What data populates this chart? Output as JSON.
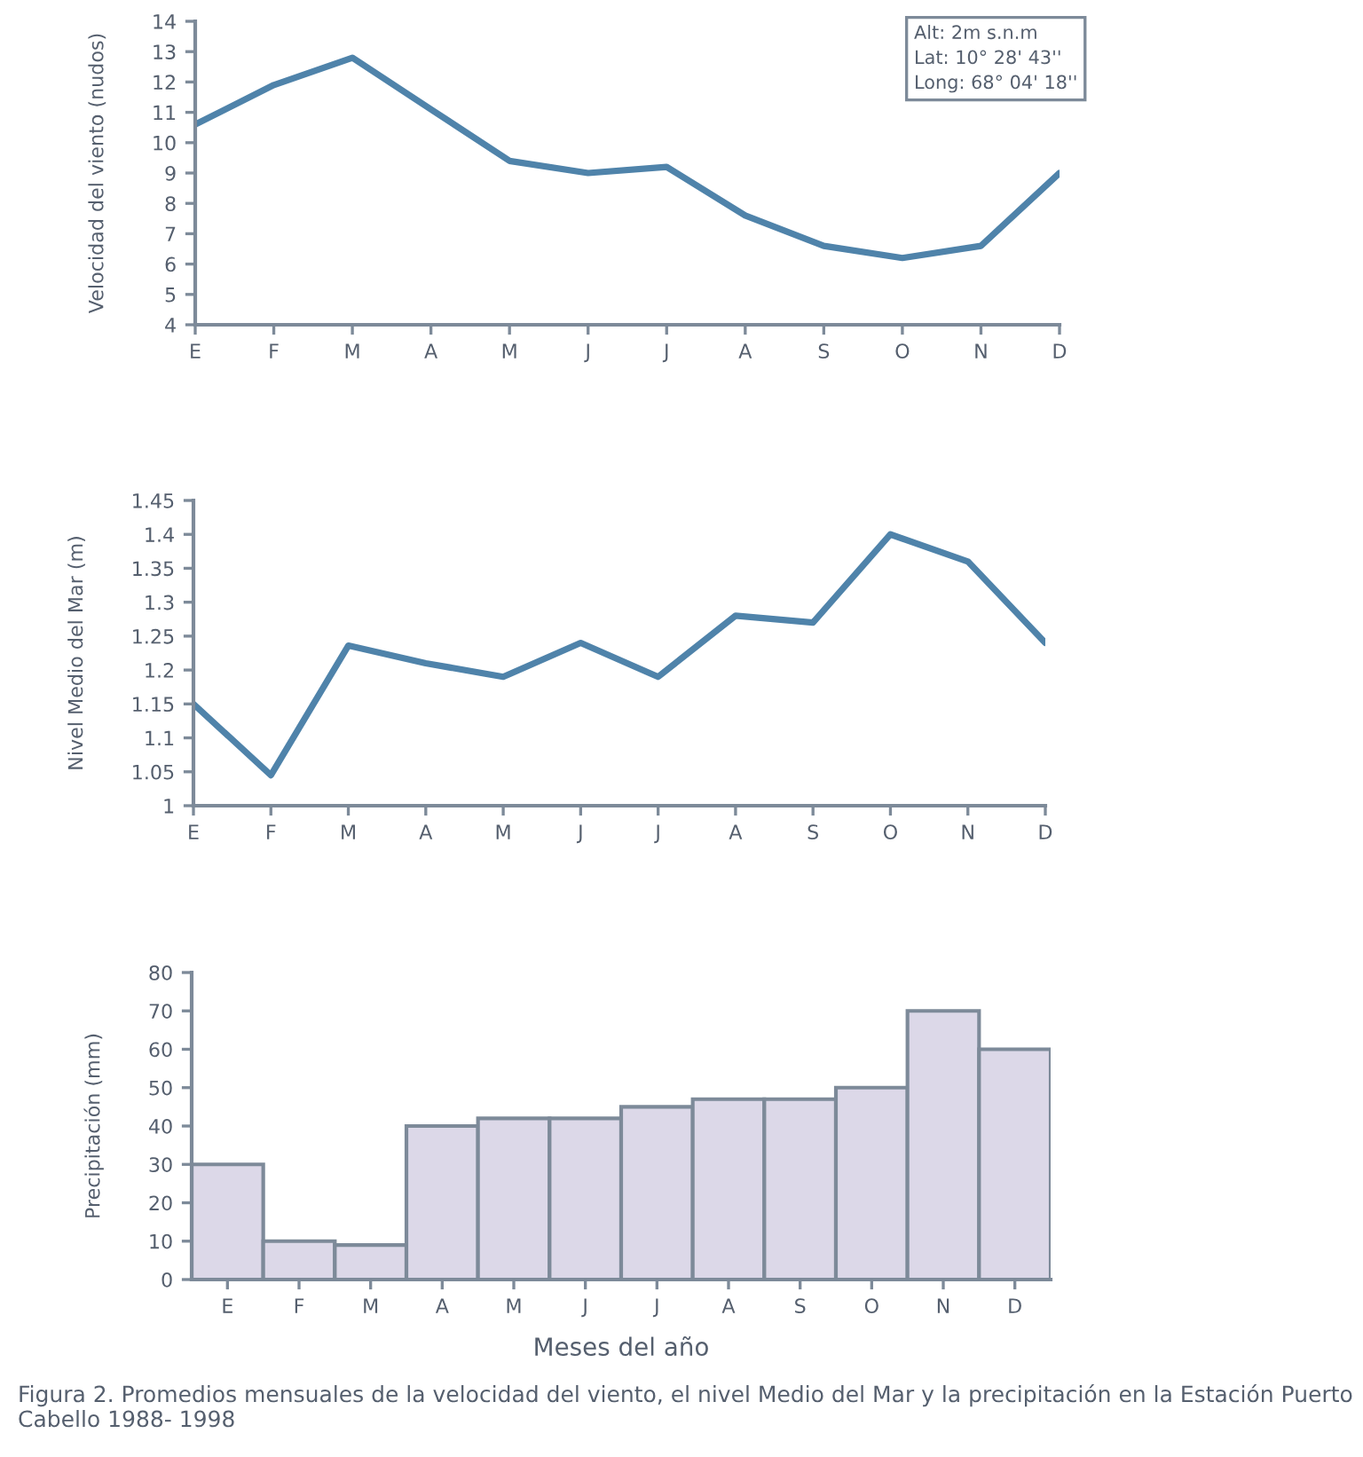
{
  "chart_data": [
    {
      "type": "line",
      "ylabel": "Velocidad del viento (nudos)",
      "categories": [
        "E",
        "F",
        "M",
        "A",
        "M",
        "J",
        "J",
        "A",
        "S",
        "O",
        "N",
        "D"
      ],
      "values": [
        10.6,
        11.9,
        12.8,
        11.1,
        9.4,
        9.0,
        9.2,
        7.6,
        6.6,
        6.2,
        6.6,
        9.0
      ],
      "color": "#4f83aa",
      "ylim": [
        4,
        14
      ],
      "yticks": [
        4,
        5,
        6,
        7,
        8,
        9,
        10,
        11,
        12,
        13,
        14
      ],
      "annotations": [
        "Alt: 2m s.n.m\nLat: 10° 28' 43''\nLong: 68° 04' 18''"
      ]
    },
    {
      "type": "line",
      "ylabel": "Nivel Medio del Mar (m)",
      "categories": [
        "E",
        "F",
        "M",
        "A",
        "M",
        "J",
        "J",
        "A",
        "S",
        "O",
        "N",
        "D"
      ],
      "values": [
        1.15,
        1.045,
        1.236,
        1.21,
        1.19,
        1.24,
        1.19,
        1.28,
        1.27,
        1.4,
        1.36,
        1.24
      ],
      "color": "#4f83aa",
      "ylim": [
        1,
        1.45
      ],
      "yticks": [
        1,
        1.05,
        1.1,
        1.15,
        1.2,
        1.25,
        1.3,
        1.35,
        1.4,
        1.45
      ]
    },
    {
      "type": "bar",
      "ylabel": "Precipitación (mm)",
      "xlabel": "Meses del año",
      "categories": [
        "E",
        "F",
        "M",
        "A",
        "M",
        "J",
        "J",
        "A",
        "S",
        "O",
        "N",
        "D"
      ],
      "values": [
        30,
        10,
        9,
        40,
        42,
        42,
        45,
        47,
        47,
        50,
        70,
        60
      ],
      "color": "#dcd8e8",
      "ylim": [
        0,
        80
      ],
      "yticks": [
        0,
        10,
        20,
        30,
        40,
        50,
        60,
        70,
        80
      ],
      "annotations": [
        "Figura 2. Promedios mensuales de la velocidad del viento, el nivel Medio del Mar y la precipitación en la Estación Puerto Cabello 1988- 1998"
      ]
    }
  ]
}
